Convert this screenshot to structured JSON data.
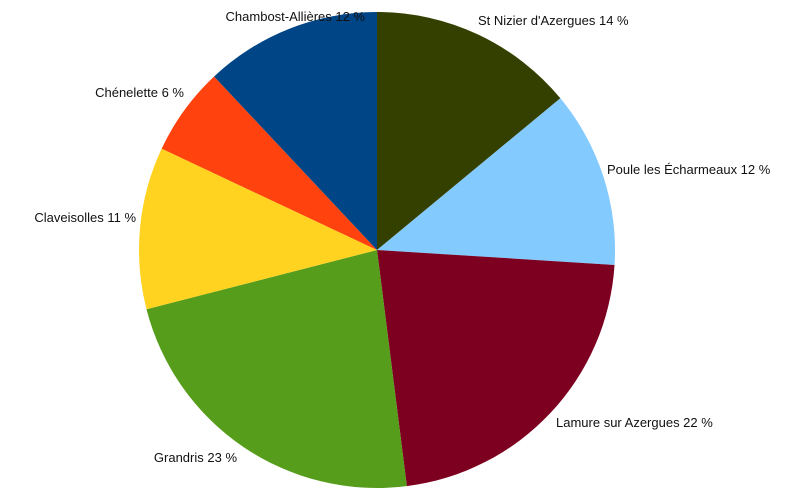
{
  "chart_data": {
    "type": "pie",
    "title": "",
    "legend": "none",
    "slices": [
      {
        "label": "St Nizier d'Azergues",
        "value": 14,
        "display": "St Nizier d'Azergues 14 %",
        "color": "#344000"
      },
      {
        "label": "Poule les Écharmeaux",
        "value": 12,
        "display": "Poule les Écharmeaux 12 %",
        "color": "#83caff"
      },
      {
        "label": "Lamure sur Azergues",
        "value": 22,
        "display": "Lamure sur Azergues 22 %",
        "color": "#7e0021"
      },
      {
        "label": "Grandris",
        "value": 23,
        "display": "Grandris 23 %",
        "color": "#579d1c"
      },
      {
        "label": "Claveisolles",
        "value": 11,
        "display": "Claveisolles 11 %",
        "color": "#ffd320"
      },
      {
        "label": "Chénelette",
        "value": 6,
        "display": "Chénelette 6 %",
        "color": "#ff420e"
      },
      {
        "label": "Chambost-Allières",
        "value": 12,
        "display": "Chambost-Allières 12 %",
        "color": "#004586"
      }
    ]
  }
}
